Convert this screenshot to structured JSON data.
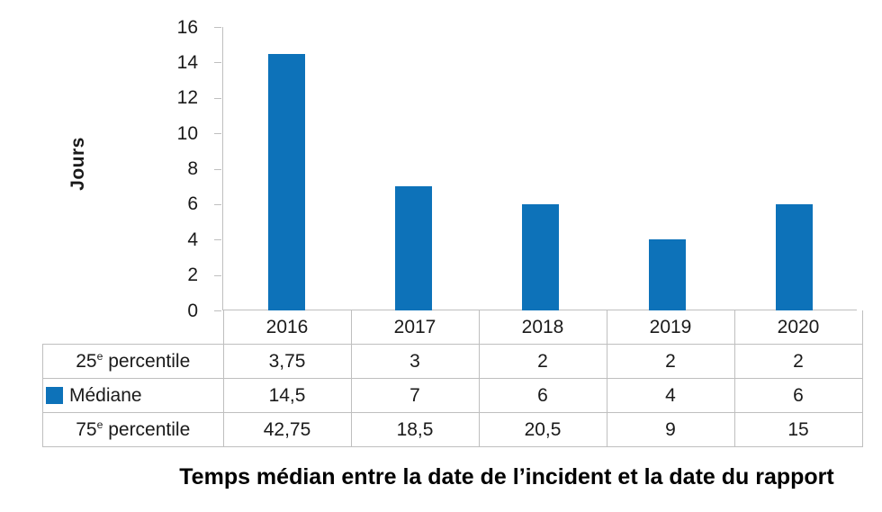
{
  "title": "Temps médian entre la date de l’incident et la date du rapport",
  "ylabel": "Jours",
  "colors": {
    "bar": "#0d72b9",
    "axis": "#bfbfbf",
    "table_border": "#bfbfbf",
    "text": "#1a1a1a"
  },
  "chart_data": {
    "type": "bar",
    "title": "Temps médian entre la date de l’incident et la date du rapport",
    "categories": [
      "2016",
      "2017",
      "2018",
      "2019",
      "2020"
    ],
    "series": [
      {
        "name": "25e percentile",
        "values": [
          3.75,
          3,
          2,
          2,
          2
        ],
        "shown_as": "table-row"
      },
      {
        "name": "Médiane",
        "values": [
          14.5,
          7,
          6,
          4,
          6
        ],
        "shown_as": "bars-and-table-row",
        "color": "#0d72b9"
      },
      {
        "name": "75e percentile",
        "values": [
          42.75,
          18.5,
          20.5,
          9,
          15
        ],
        "shown_as": "table-row"
      }
    ],
    "xlabel": "",
    "ylabel": "Jours",
    "ylim": [
      0,
      16
    ],
    "yticks": [
      16,
      14,
      12,
      10,
      8,
      6,
      4,
      2,
      0
    ],
    "grid": false,
    "legend_position": "table-row-marker"
  },
  "table": {
    "columns": [
      "2016",
      "2017",
      "2018",
      "2019",
      "2020"
    ],
    "rows": [
      {
        "label_prefix": "25",
        "label_sup": "e",
        "label_suffix": " percentile",
        "marker": false,
        "align": "center",
        "values": [
          "3,75",
          "3",
          "2",
          "2",
          "2"
        ]
      },
      {
        "label_prefix": "Médiane",
        "label_sup": "",
        "label_suffix": "",
        "marker": true,
        "align": "left",
        "values": [
          "14,5",
          "7",
          "6",
          "4",
          "6"
        ]
      },
      {
        "label_prefix": "75",
        "label_sup": "e",
        "label_suffix": " percentile",
        "marker": false,
        "align": "center",
        "values": [
          "42,75",
          "18,5",
          "20,5",
          "9",
          "15"
        ]
      }
    ]
  }
}
